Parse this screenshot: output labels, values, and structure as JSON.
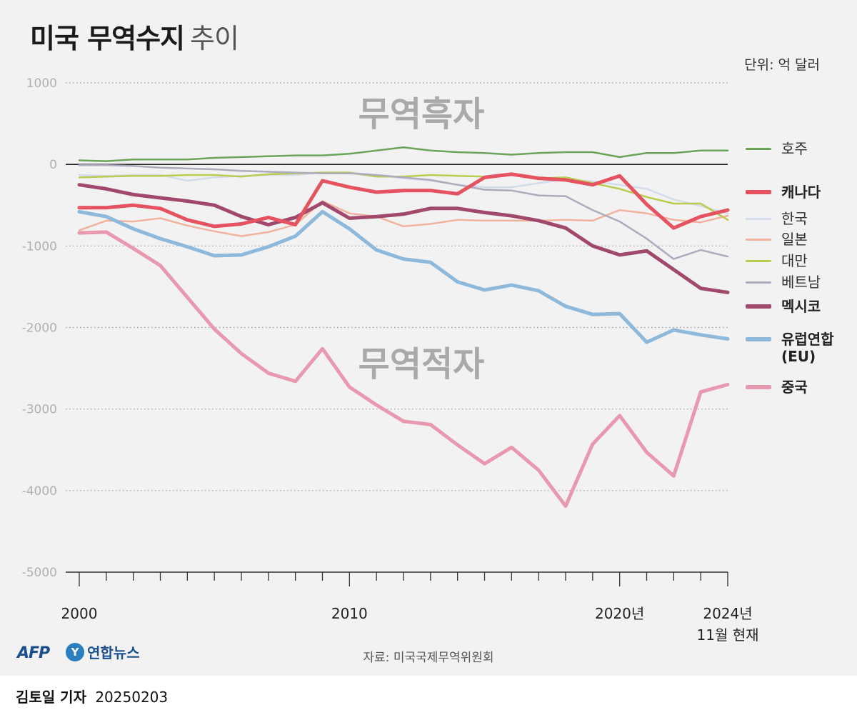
{
  "title": {
    "main": "미국 무역수지",
    "sub": "추이"
  },
  "unit": "단위: 억 달러",
  "zones": {
    "surplus": "무역흑자",
    "deficit": "무역적자"
  },
  "source": "자료: 미국국제무역위원회",
  "logos": {
    "afp": "AFP",
    "yonhap_mark": "Y",
    "yonhap_text": "연합뉴스"
  },
  "byline": {
    "name": "김토일 기자",
    "date": "20250203"
  },
  "colors": {
    "panel": "#f2f2f3",
    "grid": "#9a9a9a",
    "axis": "#333333",
    "zone_text": "#a9a9a9"
  },
  "chart_data": {
    "type": "line",
    "x": [
      2000,
      2001,
      2002,
      2003,
      2004,
      2005,
      2006,
      2007,
      2008,
      2009,
      2010,
      2011,
      2012,
      2013,
      2014,
      2015,
      2016,
      2017,
      2018,
      2019,
      2020,
      2021,
      2022,
      2023,
      2024
    ],
    "ylim": [
      -5000,
      1000
    ],
    "yticks": [
      1000,
      0,
      -1000,
      -2000,
      -3000,
      -4000,
      -5000
    ],
    "ytick_labels": [
      "1000",
      "0",
      "-1000",
      "-2000",
      "-3000",
      "-4000",
      "-5000"
    ],
    "xtick_labels": [
      {
        "x": 2000,
        "lines": [
          "2000"
        ]
      },
      {
        "x": 2010,
        "lines": [
          "2010"
        ]
      },
      {
        "x": 2020,
        "lines": [
          "2020년"
        ]
      },
      {
        "x": 2024,
        "lines": [
          "2024년",
          "11월 현재"
        ]
      }
    ],
    "grid": true,
    "legend": "right",
    "series": [
      {
        "key": "australia",
        "name": "호주",
        "color": "#6aa457",
        "width": 2.5,
        "bold": false,
        "values": [
          50,
          40,
          60,
          60,
          60,
          80,
          90,
          100,
          110,
          110,
          130,
          170,
          210,
          170,
          150,
          140,
          120,
          140,
          150,
          150,
          90,
          140,
          140,
          170,
          170
        ]
      },
      {
        "key": "korea",
        "name": "한국",
        "color": "#d4dcec",
        "width": 2.5,
        "bold": false,
        "values": [
          -130,
          -140,
          -130,
          -130,
          -200,
          -160,
          -140,
          -130,
          -130,
          -100,
          -100,
          -130,
          -170,
          -200,
          -250,
          -280,
          -280,
          -230,
          -180,
          -210,
          -250,
          -300,
          -430,
          -510,
          -600
        ]
      },
      {
        "key": "japan",
        "name": "일본",
        "color": "#f1b29e",
        "width": 2.5,
        "bold": false,
        "values": [
          -810,
          -690,
          -700,
          -660,
          -750,
          -820,
          -880,
          -830,
          -740,
          -450,
          -600,
          -640,
          -760,
          -730,
          -680,
          -690,
          -690,
          -690,
          -680,
          -690,
          -560,
          -600,
          -680,
          -710,
          -630
        ]
      },
      {
        "key": "taiwan",
        "name": "대만",
        "color": "#b9cc4d",
        "width": 2.5,
        "bold": false,
        "values": [
          -160,
          -150,
          -140,
          -140,
          -130,
          -130,
          -150,
          -120,
          -110,
          -100,
          -100,
          -150,
          -150,
          -130,
          -140,
          -150,
          -130,
          -170,
          -160,
          -230,
          -300,
          -400,
          -480,
          -480,
          -680
        ]
      },
      {
        "key": "vietnam",
        "name": "베트남",
        "color": "#aeabbd",
        "width": 2.5,
        "bold": false,
        "values": [
          -10,
          -10,
          -20,
          -40,
          -50,
          -60,
          -80,
          -90,
          -100,
          -110,
          -110,
          -130,
          -160,
          -190,
          -250,
          -310,
          -320,
          -380,
          -390,
          -560,
          -700,
          -910,
          -1160,
          -1050,
          -1130
        ]
      },
      {
        "key": "mexico",
        "name": "멕시코",
        "color": "#a1496c",
        "width": 5,
        "bold": true,
        "values": [
          -250,
          -300,
          -370,
          -410,
          -450,
          -500,
          -640,
          -740,
          -650,
          -470,
          -660,
          -640,
          -610,
          -540,
          -540,
          -590,
          -630,
          -690,
          -780,
          -1000,
          -1110,
          -1060,
          -1290,
          -1520,
          -1570
        ]
      },
      {
        "key": "eu",
        "name": "유럽연합",
        "name2": "(EU)",
        "color": "#8eb9da",
        "width": 5,
        "bold": true,
        "values": [
          -580,
          -640,
          -790,
          -910,
          -1010,
          -1120,
          -1110,
          -1010,
          -880,
          -580,
          -790,
          -1050,
          -1160,
          -1200,
          -1440,
          -1540,
          -1480,
          -1550,
          -1740,
          -1840,
          -1830,
          -2180,
          -2030,
          -2090,
          -2140
        ]
      },
      {
        "key": "canada",
        "name": "캐나다",
        "color": "#e65360",
        "width": 5,
        "bold": true,
        "values": [
          -530,
          -530,
          -500,
          -540,
          -680,
          -760,
          -730,
          -650,
          -740,
          -200,
          -280,
          -340,
          -320,
          -320,
          -360,
          -160,
          -120,
          -170,
          -190,
          -250,
          -140,
          -490,
          -780,
          -640,
          -560
        ]
      },
      {
        "key": "china",
        "name": "중국",
        "color": "#e899b0",
        "width": 5,
        "bold": true,
        "values": [
          -840,
          -830,
          -1030,
          -1240,
          -1630,
          -2020,
          -2320,
          -2560,
          -2660,
          -2260,
          -2730,
          -2950,
          -3150,
          -3190,
          -3440,
          -3670,
          -3470,
          -3750,
          -4190,
          -3430,
          -3080,
          -3530,
          -3820,
          -2790,
          -2700
        ]
      }
    ],
    "legend_order": [
      "australia",
      "canada",
      "korea",
      "japan",
      "taiwan",
      "vietnam",
      "mexico",
      "eu",
      "china"
    ]
  }
}
